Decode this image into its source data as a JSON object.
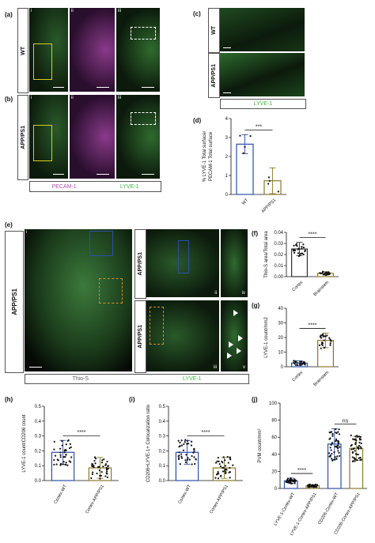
{
  "panels": {
    "a": "(a)",
    "b": "(b)",
    "c": "(c)",
    "d": "(d)",
    "e": "(e)",
    "f": "(f)",
    "g": "(g)",
    "h": "(h)",
    "i": "(i)",
    "j": "(j)"
  },
  "sub": {
    "i": "i",
    "ii": "ii",
    "iii": "iii",
    "iv": "iv",
    "v": "v"
  },
  "rows": {
    "wt": "WT",
    "app": "APP/PS1"
  },
  "stains": {
    "pecam": "PECAM-1",
    "lyve": "LYVE-1",
    "thio": "Thio-S"
  },
  "colors": {
    "green": "#3fb83f",
    "magenta": "#b050b0",
    "blue": "#2a4fa8",
    "gold": "#8a7a2a",
    "dark": "#333333"
  },
  "chart_data": [
    {
      "panel": "d",
      "type": "bar",
      "categories": [
        "WT",
        "APP/PS1"
      ],
      "values": [
        2.65,
        0.72
      ],
      "errors": [
        0.5,
        0.68
      ],
      "ylabel": "% LYVE-1 Total surface/ PECAM-1 Total surface",
      "yticks": [
        "0",
        "1",
        "2",
        "3",
        "4"
      ],
      "ylim": [
        0,
        4
      ],
      "significance": "***"
    },
    {
      "panel": "f",
      "type": "bar",
      "categories": [
        "Cortex",
        "Brainstem"
      ],
      "values": [
        0.025,
        0.003
      ],
      "errors": [
        0.006,
        0.0015
      ],
      "ylabel": "Thio-S area/Total area",
      "yticks": [
        "0.00",
        "0.01",
        "0.02",
        "0.03",
        "0.04"
      ],
      "ylim": [
        0,
        0.04
      ],
      "significance": "****"
    },
    {
      "panel": "g",
      "type": "bar",
      "categories": [
        "Cortex",
        "Brainstem"
      ],
      "values": [
        2.5,
        18
      ],
      "errors": [
        1.5,
        5
      ],
      "ylabel": "LYVE-1 count/mm2",
      "yticks": [
        "0",
        "10",
        "20",
        "30",
        "40"
      ],
      "ylim": [
        0,
        40
      ],
      "significance": "****"
    },
    {
      "panel": "h",
      "type": "bar",
      "categories": [
        "Cortex-WT",
        "Cortex-APP/PS1"
      ],
      "values": [
        0.19,
        0.085
      ],
      "errors": [
        0.08,
        0.07
      ],
      "ylabel": "LYVE-1 count/CD206 count",
      "yticks": [
        "0.0",
        "0.1",
        "0.2",
        "0.3",
        "0.4",
        "0.5"
      ],
      "ylim": [
        0,
        0.5
      ],
      "significance": "****"
    },
    {
      "panel": "i",
      "type": "bar",
      "categories": [
        "Cortex-WT",
        "Cortex-APP/PS1"
      ],
      "values": [
        0.19,
        0.085
      ],
      "errors": [
        0.08,
        0.07
      ],
      "ylabel": "CD206+LYVE-1+ Colocalization ratio",
      "yticks": [
        "0.0",
        "0.1",
        "0.2",
        "0.3",
        "0.4",
        "0.5"
      ],
      "ylim": [
        0,
        0.5
      ],
      "significance": "****"
    },
    {
      "panel": "j",
      "type": "bar",
      "categories": [
        "LYVE-1-Cortex-WT",
        "LYVE-1-Cortex-APP/PS1",
        "CD206-Cortex-WT",
        "CD206-Cortex-APP/PS1"
      ],
      "values": [
        9,
        3,
        52,
        47
      ],
      "errors": [
        3,
        1.5,
        18,
        14
      ],
      "ylabel": "PVM count/mm²",
      "yticks": [
        "0",
        "20",
        "40",
        "60",
        "80",
        "100"
      ],
      "ylim": [
        0,
        100
      ],
      "significance": [
        "****",
        "ns"
      ]
    }
  ]
}
